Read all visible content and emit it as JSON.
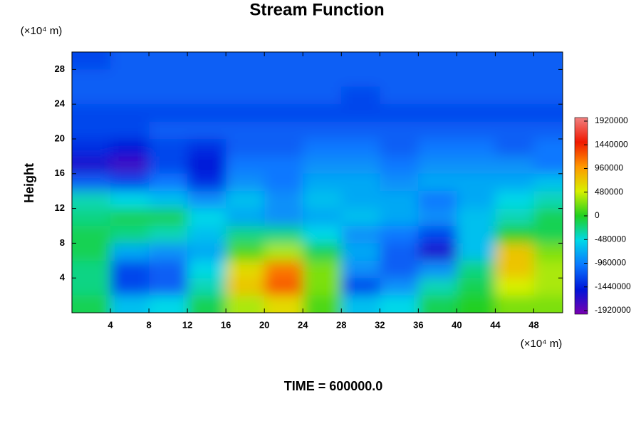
{
  "chart_data": {
    "type": "contour",
    "title": "Stream Function",
    "ylabel": "Height",
    "xunit": "(×10⁴ m)",
    "yunit": "(×10⁴ m)",
    "footer": "TIME = 600000.0",
    "xlim": [
      0,
      51
    ],
    "ylim": [
      0,
      30
    ],
    "xticks": [
      4,
      8,
      12,
      16,
      20,
      24,
      28,
      32,
      36,
      40,
      44,
      48
    ],
    "yticks": [
      4,
      8,
      12,
      16,
      20,
      24,
      28
    ],
    "clim": [
      -1920000,
      1920000
    ],
    "cticks": [
      1920000,
      1440000,
      960000,
      480000,
      0,
      -480000,
      -960000,
      -1440000,
      -1920000
    ],
    "colormap": [
      "#7a00b0",
      "#0014d8",
      "#0a78ff",
      "#00d8e8",
      "#20d020",
      "#d8f000",
      "#ff9800",
      "#f01800",
      "#f08080"
    ],
    "x": [
      2,
      6,
      10,
      14,
      18,
      22,
      26,
      30,
      34,
      38,
      42,
      46,
      50
    ],
    "y": [
      29,
      27,
      25,
      23,
      21,
      19,
      17,
      15,
      13,
      11,
      9,
      7,
      5,
      3,
      1
    ],
    "z": [
      [
        -1200000,
        -1080000,
        -1080000,
        -1080000,
        -1080000,
        -1080000,
        -1080000,
        -1080000,
        -1080000,
        -1080000,
        -1080000,
        -1080000,
        -1080000
      ],
      [
        -1080000,
        -1080000,
        -1080000,
        -1080000,
        -1080000,
        -1080000,
        -1080000,
        -1080000,
        -1080000,
        -1080000,
        -1080000,
        -1080000,
        -1080000
      ],
      [
        -1080000,
        -1080000,
        -1080000,
        -1080000,
        -1080000,
        -1080000,
        -1080000,
        -1200000,
        -1080000,
        -1080000,
        -1080000,
        -1080000,
        -1080000
      ],
      [
        -1200000,
        -1200000,
        -1200000,
        -1200000,
        -1200000,
        -1200000,
        -1200000,
        -1200000,
        -1200000,
        -1200000,
        -1200000,
        -1200000,
        -1200000
      ],
      [
        -1200000,
        -1200000,
        -1080000,
        -1080000,
        -1080000,
        -1080000,
        -1080000,
        -1080000,
        -1080000,
        -1080000,
        -1080000,
        -1080000,
        -1080000
      ],
      [
        -1320000,
        -1440000,
        -1200000,
        -1320000,
        -1080000,
        -1080000,
        -960000,
        -960000,
        -1080000,
        -960000,
        -960000,
        -1080000,
        -960000
      ],
      [
        -1560000,
        -1680000,
        -1200000,
        -1440000,
        -960000,
        -960000,
        -840000,
        -840000,
        -960000,
        -840000,
        -840000,
        -840000,
        -960000
      ],
      [
        -1080000,
        -1200000,
        -960000,
        -1320000,
        -840000,
        -960000,
        -720000,
        -720000,
        -840000,
        -720000,
        -720000,
        -720000,
        -600000
      ],
      [
        -360000,
        -480000,
        -600000,
        -840000,
        -600000,
        -840000,
        -600000,
        -720000,
        -720000,
        -960000,
        -720000,
        -480000,
        -360000
      ],
      [
        -240000,
        -120000,
        -120000,
        -480000,
        -720000,
        -840000,
        -720000,
        -600000,
        -720000,
        -840000,
        -600000,
        -360000,
        -120000
      ],
      [
        -120000,
        -240000,
        -360000,
        -600000,
        -240000,
        -240000,
        -480000,
        -840000,
        -960000,
        -1200000,
        -600000,
        0,
        -120000
      ],
      [
        -120000,
        -720000,
        -840000,
        -720000,
        120000,
        360000,
        -120000,
        -720000,
        -1080000,
        -1560000,
        -600000,
        720000,
        240000
      ],
      [
        -240000,
        -1200000,
        -1080000,
        -480000,
        600000,
        1080000,
        240000,
        -840000,
        -1080000,
        -840000,
        -240000,
        720000,
        360000
      ],
      [
        -240000,
        -1200000,
        -1080000,
        -360000,
        720000,
        1200000,
        240000,
        -1200000,
        -840000,
        -360000,
        -120000,
        480000,
        360000
      ],
      [
        -120000,
        -600000,
        -480000,
        -120000,
        360000,
        600000,
        120000,
        -600000,
        -480000,
        -120000,
        0,
        240000,
        240000
      ]
    ]
  }
}
